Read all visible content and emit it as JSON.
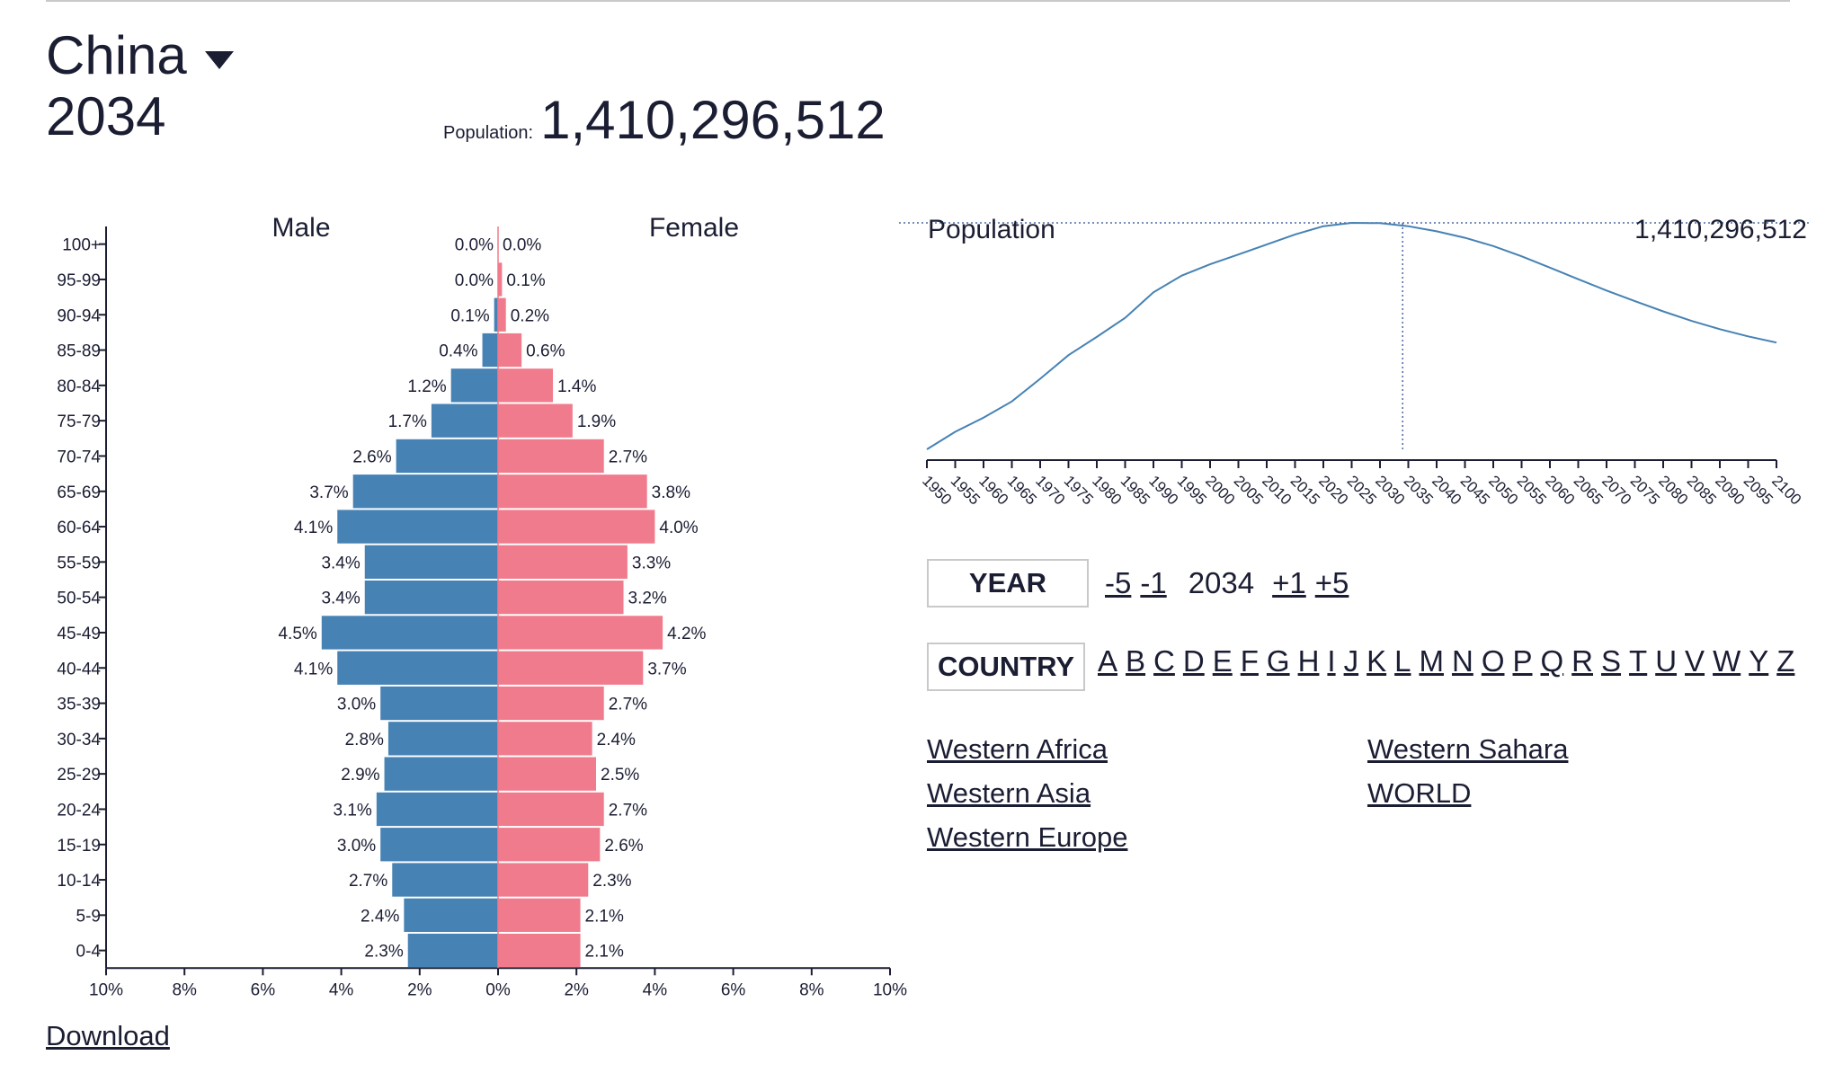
{
  "header": {
    "country": "China",
    "year": "2034",
    "population_label": "Population:",
    "population_value": "1,410,296,512"
  },
  "colors": {
    "male": "#4682b4",
    "female": "#f07b8c",
    "text": "#1b1e33",
    "line": "#4682b4"
  },
  "chart_data": [
    {
      "type": "bar",
      "subtype": "population-pyramid",
      "categories": [
        "100+",
        "95-99",
        "90-94",
        "85-89",
        "80-84",
        "75-79",
        "70-74",
        "65-69",
        "60-64",
        "55-59",
        "50-54",
        "45-49",
        "40-44",
        "35-39",
        "30-34",
        "25-29",
        "20-24",
        "15-19",
        "10-14",
        "5-9",
        "0-4"
      ],
      "series": [
        {
          "name": "Male",
          "values": [
            0.0,
            0.0,
            0.1,
            0.4,
            1.2,
            1.7,
            2.6,
            3.7,
            4.1,
            3.4,
            3.4,
            4.5,
            4.1,
            3.0,
            2.8,
            2.9,
            3.1,
            3.0,
            2.7,
            2.4,
            2.3
          ],
          "labels": [
            "0.0%",
            "0.0%",
            "0.1%",
            "0.4%",
            "1.2%",
            "1.7%",
            "2.6%",
            "3.7%",
            "4.1%",
            "3.4%",
            "3.4%",
            "4.5%",
            "4.1%",
            "3.0%",
            "2.8%",
            "2.9%",
            "3.1%",
            "3.0%",
            "2.7%",
            "2.4%",
            "2.3%"
          ]
        },
        {
          "name": "Female",
          "values": [
            0.0,
            0.1,
            0.2,
            0.6,
            1.4,
            1.9,
            2.7,
            3.8,
            4.0,
            3.3,
            3.2,
            4.2,
            3.7,
            2.7,
            2.4,
            2.5,
            2.7,
            2.6,
            2.3,
            2.1,
            2.1
          ],
          "labels": [
            "0.0%",
            "0.1%",
            "0.2%",
            "0.6%",
            "1.4%",
            "1.9%",
            "2.7%",
            "3.8%",
            "4.0%",
            "3.3%",
            "3.2%",
            "4.2%",
            "3.7%",
            "2.7%",
            "2.4%",
            "2.5%",
            "2.7%",
            "2.6%",
            "2.3%",
            "2.1%",
            "2.1%"
          ]
        }
      ],
      "xlim": [
        -10,
        10
      ],
      "xticks": [
        "10%",
        "8%",
        "6%",
        "4%",
        "2%",
        "0%",
        "2%",
        "4%",
        "6%",
        "8%",
        "10%"
      ]
    },
    {
      "type": "line",
      "title": "Population",
      "value_label": "1,410,296,512",
      "x": [
        1950,
        1955,
        1960,
        1965,
        1970,
        1975,
        1980,
        1985,
        1990,
        1995,
        2000,
        2005,
        2010,
        2015,
        2020,
        2025,
        2030,
        2035,
        2040,
        2045,
        2050,
        2055,
        2060,
        2065,
        2070,
        2075,
        2080,
        2085,
        2090,
        2095,
        2100
      ],
      "y": [
        544,
        612,
        667,
        730,
        818,
        910,
        981,
        1055,
        1154,
        1219,
        1263,
        1301,
        1340,
        1379,
        1411,
        1424,
        1423,
        1411,
        1391,
        1366,
        1334,
        1294,
        1250,
        1205,
        1161,
        1120,
        1080,
        1043,
        1011,
        983,
        959
      ],
      "xticks": [
        "1950",
        "1955",
        "1960",
        "1965",
        "1970",
        "1975",
        "1980",
        "1985",
        "1990",
        "1995",
        "2000",
        "2005",
        "2010",
        "2015",
        "2020",
        "2025",
        "2030",
        "2035",
        "2040",
        "2045",
        "2050",
        "2055",
        "2060",
        "2065",
        "2070",
        "2075",
        "2080",
        "2085",
        "2090",
        "2095",
        "2100"
      ],
      "marker_year": 2034,
      "ylim": [
        544,
        1424
      ]
    }
  ],
  "controls": {
    "year_button": "YEAR",
    "minus5": "-5",
    "minus1": "-1",
    "current_year": "2034",
    "plus1": "+1",
    "plus5": "+5",
    "country_button": "COUNTRY",
    "letters": [
      "A",
      "B",
      "C",
      "D",
      "E",
      "F",
      "G",
      "H",
      "I",
      "J",
      "K",
      "L",
      "M",
      "N",
      "O",
      "P",
      "Q",
      "R",
      "S",
      "T",
      "U",
      "V",
      "W",
      "Y",
      "Z"
    ]
  },
  "regions": [
    "Western Africa",
    "Western Asia",
    "Western Europe",
    "Western Sahara",
    "WORLD"
  ],
  "download_label": "Download"
}
